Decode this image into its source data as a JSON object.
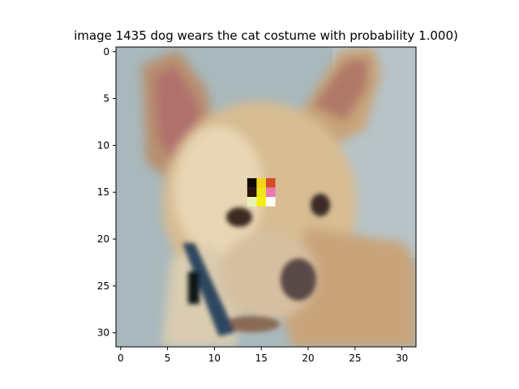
{
  "chart_data": {
    "type": "heatmap",
    "title": "image 1435  dog wears the cat costume with probability 1.000)",
    "xlabel": "",
    "ylabel": "",
    "xlim": [
      -0.5,
      31.5
    ],
    "ylim": [
      31.5,
      -0.5
    ],
    "x_ticks": [
      0,
      5,
      10,
      15,
      20,
      25,
      30
    ],
    "y_ticks": [
      0,
      5,
      10,
      15,
      20,
      25,
      30
    ],
    "grid": false,
    "image_size": [
      32,
      32
    ],
    "image_subject": "pixelated photo of a tan dog (chihuahua) with a blue collar",
    "patch": {
      "rows": [
        14,
        15,
        16
      ],
      "cols": [
        14,
        15,
        16
      ],
      "colors": [
        [
          "#100a05",
          "#f5d51a",
          "#d94a2a"
        ],
        [
          "#2a1408",
          "#f0e41a",
          "#e87ab0"
        ],
        [
          "#e8f2b0",
          "#f5ef10",
          "#ffffff"
        ]
      ]
    },
    "colors": {
      "background": "#a8b8bc",
      "fur": "#cfae85",
      "ear_inner": "#b06f6c",
      "collar": "#2f4760",
      "nose": "#5a4848"
    }
  }
}
